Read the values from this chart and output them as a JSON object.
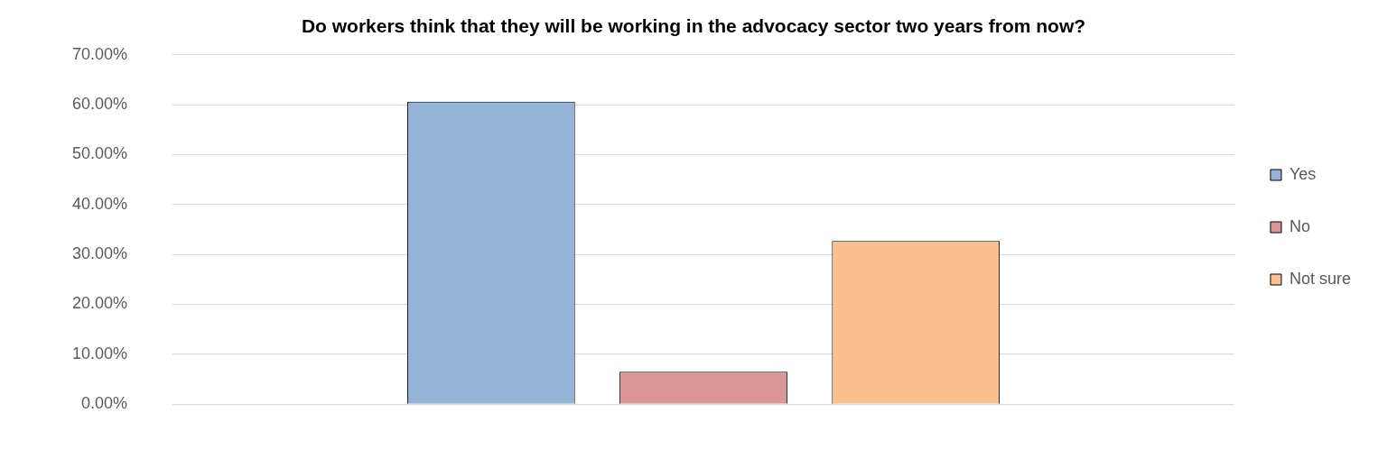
{
  "chart_data": {
    "type": "bar",
    "title": "Do workers think that they will be working in the advocacy sector two years from now?",
    "categories": [
      null
    ],
    "series": [
      {
        "name": "Yes",
        "color": "#95b3d7",
        "values": [
          60.6
        ]
      },
      {
        "name": "No",
        "color": "#d99694",
        "values": [
          6.5
        ]
      },
      {
        "name": "Not sure",
        "color": "#fac090",
        "values": [
          32.7
        ]
      }
    ],
    "ylim": [
      0,
      70
    ],
    "yticks": [
      {
        "value": 0,
        "label": "0.00%"
      },
      {
        "value": 10,
        "label": "10.00%"
      },
      {
        "value": 20,
        "label": "20.00%"
      },
      {
        "value": 30,
        "label": "30.00%"
      },
      {
        "value": 40,
        "label": "40.00%"
      },
      {
        "value": 50,
        "label": "50.00%"
      },
      {
        "value": 60,
        "label": "60.00%"
      },
      {
        "value": 70,
        "label": "70.00%"
      }
    ],
    "grid": "y",
    "legend": "right"
  }
}
